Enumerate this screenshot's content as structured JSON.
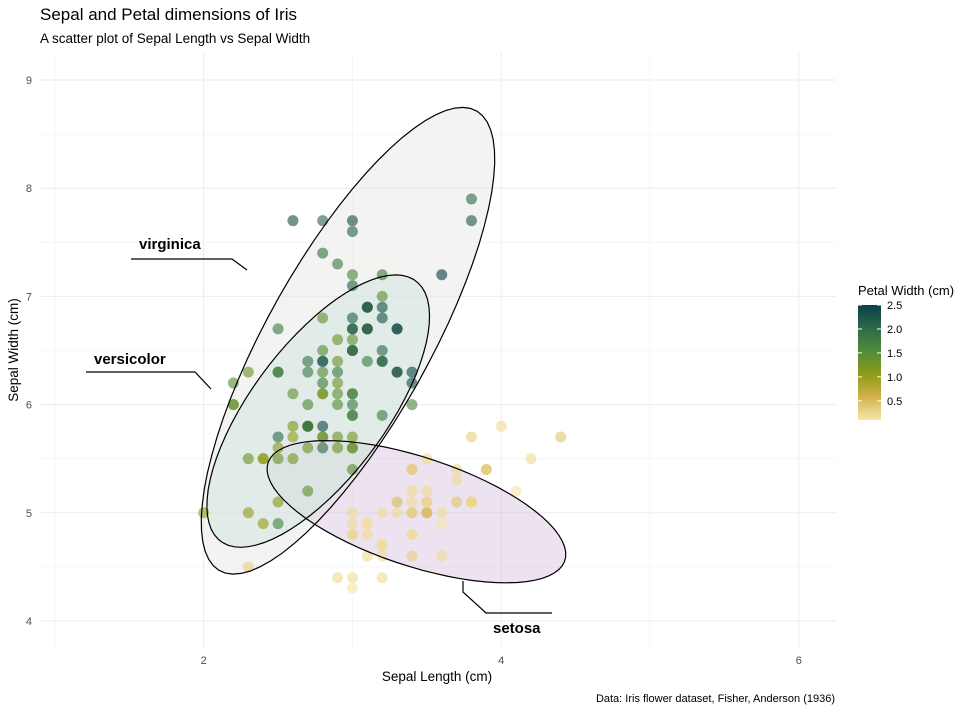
{
  "chart_data": {
    "type": "scatter",
    "title": "Sepal and Petal dimensions of Iris",
    "subtitle": "A scatter plot of Sepal Length vs Sepal Width",
    "xlabel": "Sepal Length (cm)",
    "ylabel": "Sepal Width (cm)",
    "caption": "Data: Iris flower dataset, Fisher, Anderson (1936)",
    "xlim": [
      0.9,
      6.25
    ],
    "ylim": [
      3.75,
      9.25
    ],
    "x_ticks": [
      2,
      4,
      6
    ],
    "y_ticks": [
      4,
      5,
      6,
      7,
      8,
      9
    ],
    "grid": true,
    "note": "points plot x = Sepal Width, y = Sepal Length as drawn in the figure",
    "color_legend": {
      "title": "Petal Width (cm)",
      "ticks": [
        0.5,
        1.0,
        1.5,
        2.0,
        2.5
      ],
      "tick_labels": [
        "0.5",
        "1.0",
        "1.5",
        "2.0",
        "2.5"
      ],
      "range": [
        0.1,
        2.5
      ],
      "colors": [
        "#f6e7a9",
        "#d2b24a",
        "#8d9a16",
        "#4f8c3a",
        "#2c6a4a",
        "#0b3f47"
      ]
    },
    "species": [
      {
        "name": "setosa",
        "fill": "#d8bfdc",
        "ellipse": {
          "cx": 3.43,
          "cy": 5.01,
          "rx": 1.1,
          "ry": 0.48,
          "angle_deg": -27
        }
      },
      {
        "name": "versicolor",
        "fill": "#b8e3d9",
        "ellipse": {
          "cx": 2.77,
          "cy": 5.94,
          "rx": 1.38,
          "ry": 0.49,
          "angle_deg": 64
        }
      },
      {
        "name": "virginica",
        "fill": "#e4e4e1",
        "ellipse": {
          "cx": 2.97,
          "cy": 6.59,
          "rx": 2.3,
          "ry": 0.58,
          "angle_deg": 69
        }
      }
    ],
    "labels": [
      {
        "text": "virginica",
        "species": "virginica"
      },
      {
        "text": "versicolor",
        "species": "versicolor"
      },
      {
        "text": "setosa",
        "species": "setosa"
      }
    ],
    "points": [
      {
        "x": 3.5,
        "y": 5.1,
        "pw": 0.2
      },
      {
        "x": 3.0,
        "y": 4.9,
        "pw": 0.2
      },
      {
        "x": 3.2,
        "y": 4.7,
        "pw": 0.2
      },
      {
        "x": 3.1,
        "y": 4.6,
        "pw": 0.2
      },
      {
        "x": 3.6,
        "y": 5.0,
        "pw": 0.2
      },
      {
        "x": 3.9,
        "y": 5.4,
        "pw": 0.4
      },
      {
        "x": 3.4,
        "y": 4.6,
        "pw": 0.3
      },
      {
        "x": 3.4,
        "y": 5.0,
        "pw": 0.2
      },
      {
        "x": 2.9,
        "y": 4.4,
        "pw": 0.2
      },
      {
        "x": 3.1,
        "y": 4.9,
        "pw": 0.1
      },
      {
        "x": 3.7,
        "y": 5.4,
        "pw": 0.2
      },
      {
        "x": 3.4,
        "y": 4.8,
        "pw": 0.2
      },
      {
        "x": 3.0,
        "y": 4.8,
        "pw": 0.1
      },
      {
        "x": 3.0,
        "y": 4.3,
        "pw": 0.1
      },
      {
        "x": 4.0,
        "y": 5.8,
        "pw": 0.2
      },
      {
        "x": 4.4,
        "y": 5.7,
        "pw": 0.4
      },
      {
        "x": 3.9,
        "y": 5.4,
        "pw": 0.4
      },
      {
        "x": 3.5,
        "y": 5.1,
        "pw": 0.3
      },
      {
        "x": 3.8,
        "y": 5.7,
        "pw": 0.3
      },
      {
        "x": 3.8,
        "y": 5.1,
        "pw": 0.3
      },
      {
        "x": 3.4,
        "y": 5.4,
        "pw": 0.2
      },
      {
        "x": 3.7,
        "y": 5.1,
        "pw": 0.4
      },
      {
        "x": 3.6,
        "y": 4.6,
        "pw": 0.2
      },
      {
        "x": 3.3,
        "y": 5.1,
        "pw": 0.5
      },
      {
        "x": 3.4,
        "y": 4.8,
        "pw": 0.2
      },
      {
        "x": 3.0,
        "y": 5.0,
        "pw": 0.2
      },
      {
        "x": 3.4,
        "y": 5.0,
        "pw": 0.4
      },
      {
        "x": 3.5,
        "y": 5.2,
        "pw": 0.2
      },
      {
        "x": 3.4,
        "y": 5.2,
        "pw": 0.2
      },
      {
        "x": 3.2,
        "y": 4.7,
        "pw": 0.2
      },
      {
        "x": 3.1,
        "y": 4.8,
        "pw": 0.2
      },
      {
        "x": 3.4,
        "y": 5.4,
        "pw": 0.4
      },
      {
        "x": 4.1,
        "y": 5.2,
        "pw": 0.1
      },
      {
        "x": 4.2,
        "y": 5.5,
        "pw": 0.2
      },
      {
        "x": 3.1,
        "y": 4.9,
        "pw": 0.2
      },
      {
        "x": 3.2,
        "y": 5.0,
        "pw": 0.2
      },
      {
        "x": 3.5,
        "y": 5.5,
        "pw": 0.2
      },
      {
        "x": 3.6,
        "y": 4.9,
        "pw": 0.1
      },
      {
        "x": 3.0,
        "y": 4.4,
        "pw": 0.2
      },
      {
        "x": 3.4,
        "y": 5.1,
        "pw": 0.2
      },
      {
        "x": 3.5,
        "y": 5.0,
        "pw": 0.3
      },
      {
        "x": 2.3,
        "y": 4.5,
        "pw": 0.3
      },
      {
        "x": 3.2,
        "y": 4.4,
        "pw": 0.2
      },
      {
        "x": 3.5,
        "y": 5.0,
        "pw": 0.6
      },
      {
        "x": 3.8,
        "y": 5.1,
        "pw": 0.4
      },
      {
        "x": 3.0,
        "y": 4.8,
        "pw": 0.3
      },
      {
        "x": 3.8,
        "y": 5.1,
        "pw": 0.2
      },
      {
        "x": 3.2,
        "y": 4.6,
        "pw": 0.2
      },
      {
        "x": 3.7,
        "y": 5.3,
        "pw": 0.2
      },
      {
        "x": 3.3,
        "y": 5.0,
        "pw": 0.2
      },
      {
        "x": 3.2,
        "y": 7.0,
        "pw": 1.4
      },
      {
        "x": 3.2,
        "y": 6.4,
        "pw": 1.5
      },
      {
        "x": 3.1,
        "y": 6.9,
        "pw": 1.5
      },
      {
        "x": 2.3,
        "y": 5.5,
        "pw": 1.3
      },
      {
        "x": 2.8,
        "y": 6.5,
        "pw": 1.5
      },
      {
        "x": 2.8,
        "y": 5.7,
        "pw": 1.3
      },
      {
        "x": 3.3,
        "y": 6.3,
        "pw": 1.6
      },
      {
        "x": 2.4,
        "y": 4.9,
        "pw": 1.0
      },
      {
        "x": 2.9,
        "y": 6.6,
        "pw": 1.3
      },
      {
        "x": 2.7,
        "y": 5.2,
        "pw": 1.4
      },
      {
        "x": 2.0,
        "y": 5.0,
        "pw": 1.0
      },
      {
        "x": 3.0,
        "y": 5.9,
        "pw": 1.5
      },
      {
        "x": 2.2,
        "y": 6.0,
        "pw": 1.0
      },
      {
        "x": 2.9,
        "y": 6.1,
        "pw": 1.4
      },
      {
        "x": 2.9,
        "y": 5.6,
        "pw": 1.3
      },
      {
        "x": 3.1,
        "y": 6.7,
        "pw": 1.4
      },
      {
        "x": 3.0,
        "y": 5.6,
        "pw": 1.5
      },
      {
        "x": 2.7,
        "y": 5.8,
        "pw": 1.0
      },
      {
        "x": 2.2,
        "y": 6.2,
        "pw": 1.5
      },
      {
        "x": 2.5,
        "y": 5.6,
        "pw": 1.1
      },
      {
        "x": 3.2,
        "y": 5.9,
        "pw": 1.8
      },
      {
        "x": 2.8,
        "y": 6.1,
        "pw": 1.3
      },
      {
        "x": 2.5,
        "y": 6.3,
        "pw": 1.5
      },
      {
        "x": 2.8,
        "y": 6.1,
        "pw": 1.2
      },
      {
        "x": 2.9,
        "y": 6.4,
        "pw": 1.3
      },
      {
        "x": 3.0,
        "y": 6.6,
        "pw": 1.4
      },
      {
        "x": 2.8,
        "y": 6.8,
        "pw": 1.4
      },
      {
        "x": 3.0,
        "y": 6.7,
        "pw": 1.7
      },
      {
        "x": 2.9,
        "y": 6.0,
        "pw": 1.5
      },
      {
        "x": 2.6,
        "y": 5.7,
        "pw": 1.0
      },
      {
        "x": 2.4,
        "y": 5.5,
        "pw": 1.1
      },
      {
        "x": 2.4,
        "y": 5.5,
        "pw": 1.0
      },
      {
        "x": 2.7,
        "y": 5.8,
        "pw": 1.2
      },
      {
        "x": 2.7,
        "y": 6.0,
        "pw": 1.6
      },
      {
        "x": 3.0,
        "y": 5.4,
        "pw": 1.5
      },
      {
        "x": 3.4,
        "y": 6.0,
        "pw": 1.6
      },
      {
        "x": 3.1,
        "y": 6.7,
        "pw": 1.5
      },
      {
        "x": 2.3,
        "y": 6.3,
        "pw": 1.3
      },
      {
        "x": 3.0,
        "y": 5.6,
        "pw": 1.3
      },
      {
        "x": 2.5,
        "y": 5.5,
        "pw": 1.3
      },
      {
        "x": 2.6,
        "y": 5.5,
        "pw": 1.2
      },
      {
        "x": 3.0,
        "y": 6.1,
        "pw": 1.4
      },
      {
        "x": 2.6,
        "y": 5.8,
        "pw": 1.2
      },
      {
        "x": 2.3,
        "y": 5.0,
        "pw": 1.0
      },
      {
        "x": 2.7,
        "y": 5.6,
        "pw": 1.3
      },
      {
        "x": 3.0,
        "y": 5.7,
        "pw": 1.2
      },
      {
        "x": 2.9,
        "y": 5.7,
        "pw": 1.3
      },
      {
        "x": 2.9,
        "y": 6.2,
        "pw": 1.3
      },
      {
        "x": 2.5,
        "y": 5.1,
        "pw": 1.1
      },
      {
        "x": 2.8,
        "y": 5.7,
        "pw": 1.3
      },
      {
        "x": 3.3,
        "y": 6.3,
        "pw": 2.5
      },
      {
        "x": 2.7,
        "y": 5.8,
        "pw": 1.9
      },
      {
        "x": 3.0,
        "y": 7.1,
        "pw": 2.1
      },
      {
        "x": 2.9,
        "y": 6.3,
        "pw": 1.8
      },
      {
        "x": 3.0,
        "y": 6.5,
        "pw": 2.2
      },
      {
        "x": 3.0,
        "y": 7.6,
        "pw": 2.1
      },
      {
        "x": 2.5,
        "y": 4.9,
        "pw": 1.7
      },
      {
        "x": 2.9,
        "y": 7.3,
        "pw": 1.8
      },
      {
        "x": 2.5,
        "y": 6.7,
        "pw": 1.8
      },
      {
        "x": 3.6,
        "y": 7.2,
        "pw": 2.5
      },
      {
        "x": 3.2,
        "y": 6.5,
        "pw": 2.0
      },
      {
        "x": 2.7,
        "y": 6.4,
        "pw": 1.9
      },
      {
        "x": 3.0,
        "y": 6.8,
        "pw": 2.1
      },
      {
        "x": 2.5,
        "y": 5.7,
        "pw": 2.0
      },
      {
        "x": 2.8,
        "y": 5.8,
        "pw": 2.4
      },
      {
        "x": 3.2,
        "y": 6.4,
        "pw": 2.3
      },
      {
        "x": 3.0,
        "y": 6.5,
        "pw": 1.8
      },
      {
        "x": 3.8,
        "y": 7.7,
        "pw": 2.2
      },
      {
        "x": 2.6,
        "y": 7.7,
        "pw": 2.3
      },
      {
        "x": 2.2,
        "y": 6.0,
        "pw": 1.5
      },
      {
        "x": 3.2,
        "y": 6.9,
        "pw": 2.3
      },
      {
        "x": 2.8,
        "y": 5.6,
        "pw": 2.0
      },
      {
        "x": 2.8,
        "y": 7.7,
        "pw": 2.0
      },
      {
        "x": 2.7,
        "y": 6.3,
        "pw": 1.8
      },
      {
        "x": 3.3,
        "y": 6.7,
        "pw": 2.1
      },
      {
        "x": 3.2,
        "y": 7.2,
        "pw": 1.8
      },
      {
        "x": 2.8,
        "y": 6.2,
        "pw": 1.8
      },
      {
        "x": 3.0,
        "y": 6.1,
        "pw": 1.8
      },
      {
        "x": 2.8,
        "y": 6.4,
        "pw": 2.1
      },
      {
        "x": 3.0,
        "y": 7.2,
        "pw": 1.6
      },
      {
        "x": 2.8,
        "y": 7.4,
        "pw": 1.9
      },
      {
        "x": 3.8,
        "y": 7.9,
        "pw": 2.0
      },
      {
        "x": 2.8,
        "y": 6.4,
        "pw": 2.2
      },
      {
        "x": 2.8,
        "y": 6.3,
        "pw": 1.5
      },
      {
        "x": 2.6,
        "y": 6.1,
        "pw": 1.4
      },
      {
        "x": 3.0,
        "y": 7.7,
        "pw": 2.3
      },
      {
        "x": 3.4,
        "y": 6.3,
        "pw": 2.4
      },
      {
        "x": 3.1,
        "y": 6.4,
        "pw": 1.8
      },
      {
        "x": 3.0,
        "y": 6.0,
        "pw": 1.8
      },
      {
        "x": 3.1,
        "y": 6.9,
        "pw": 2.1
      },
      {
        "x": 3.1,
        "y": 6.7,
        "pw": 2.4
      },
      {
        "x": 3.1,
        "y": 6.9,
        "pw": 2.3
      },
      {
        "x": 2.7,
        "y": 5.8,
        "pw": 1.9
      },
      {
        "x": 3.2,
        "y": 6.8,
        "pw": 2.3
      },
      {
        "x": 3.3,
        "y": 6.7,
        "pw": 2.5
      },
      {
        "x": 3.0,
        "y": 6.7,
        "pw": 2.3
      },
      {
        "x": 2.5,
        "y": 6.3,
        "pw": 1.9
      },
      {
        "x": 3.0,
        "y": 6.5,
        "pw": 2.0
      },
      {
        "x": 3.4,
        "y": 6.2,
        "pw": 2.3
      },
      {
        "x": 3.0,
        "y": 5.9,
        "pw": 1.8
      }
    ]
  }
}
